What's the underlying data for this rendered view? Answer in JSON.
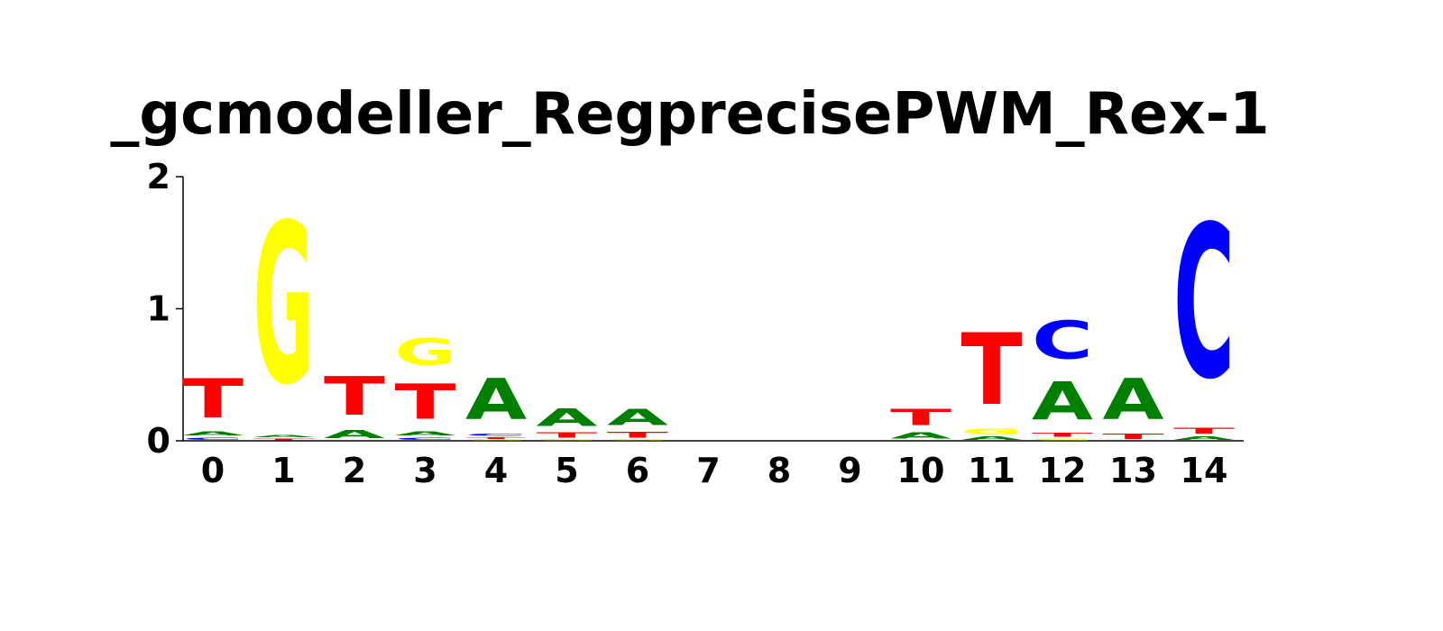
{
  "chart_data": {
    "type": "sequence-logo",
    "title": "_gcmodeller_RegprecisePWM_Rex-1",
    "xlabel": "",
    "ylabel": "",
    "ylim": [
      0,
      2
    ],
    "y_ticks": [
      "0",
      "1",
      "2"
    ],
    "positions": [
      "0",
      "1",
      "2",
      "3",
      "4",
      "5",
      "6",
      "7",
      "8",
      "9",
      "10",
      "11",
      "12",
      "13",
      "14"
    ],
    "colors": {
      "A": "#008000",
      "C": "#0000ff",
      "G": "#ffff00",
      "T": "#ff0000"
    },
    "stacks": [
      [
        {
          "letter": "C",
          "bits": 0.03
        },
        {
          "letter": "A",
          "bits": 0.05
        },
        {
          "letter": "T",
          "bits": 0.48
        }
      ],
      [
        {
          "letter": "T",
          "bits": 0.02
        },
        {
          "letter": "A",
          "bits": 0.03
        },
        {
          "letter": "G",
          "bits": 1.95
        }
      ],
      [
        {
          "letter": "A",
          "bits": 0.1
        },
        {
          "letter": "T",
          "bits": 0.47
        }
      ],
      [
        {
          "letter": "C",
          "bits": 0.03
        },
        {
          "letter": "A",
          "bits": 0.05
        },
        {
          "letter": "T",
          "bits": 0.43
        },
        {
          "letter": "G",
          "bits": 0.32
        }
      ],
      [
        {
          "letter": "G",
          "bits": 0.01
        },
        {
          "letter": "T",
          "bits": 0.02
        },
        {
          "letter": "C",
          "bits": 0.03
        },
        {
          "letter": "A",
          "bits": 0.5
        }
      ],
      [
        {
          "letter": "G",
          "bits": 0.01
        },
        {
          "letter": "T",
          "bits": 0.06
        },
        {
          "letter": "A",
          "bits": 0.21
        }
      ],
      [
        {
          "letter": "G",
          "bits": 0.01
        },
        {
          "letter": "T",
          "bits": 0.07
        },
        {
          "letter": "A",
          "bits": 0.2
        }
      ],
      [],
      [],
      [],
      [
        {
          "letter": "A",
          "bits": 0.08
        },
        {
          "letter": "T",
          "bits": 0.2
        }
      ],
      [
        {
          "letter": "A",
          "bits": 0.04
        },
        {
          "letter": "G",
          "bits": 0.06
        },
        {
          "letter": "T",
          "bits": 0.87
        }
      ],
      [
        {
          "letter": "G",
          "bits": 0.02
        },
        {
          "letter": "T",
          "bits": 0.05
        },
        {
          "letter": "A",
          "bits": 0.46
        },
        {
          "letter": "C",
          "bits": 0.46
        }
      ],
      [
        {
          "letter": "T",
          "bits": 0.06
        },
        {
          "letter": "A",
          "bits": 0.5
        }
      ],
      [
        {
          "letter": "A",
          "bits": 0.04
        },
        {
          "letter": "T",
          "bits": 0.07
        },
        {
          "letter": "C",
          "bits": 1.86
        }
      ]
    ]
  }
}
